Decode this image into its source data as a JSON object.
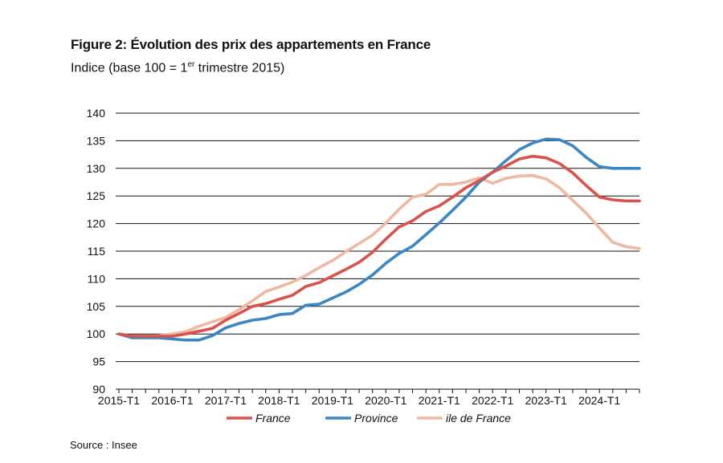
{
  "header": {
    "title": "Figure 2: Évolution des prix des appartements en France",
    "subtitle_main": "Indice (base 100 = 1",
    "subtitle_sup": "er",
    "subtitle_end": " trimestre 2015)"
  },
  "footer": {
    "source": "Source : Insee"
  },
  "chart_data": {
    "type": "line",
    "ylim": [
      90,
      140
    ],
    "yticks": [
      90,
      95,
      100,
      105,
      110,
      115,
      120,
      125,
      130,
      135,
      140
    ],
    "xtick_labels": [
      "2015-T1",
      "2016-T1",
      "2017-T1",
      "2018-T1",
      "2019-T1",
      "2020-T1",
      "2021-T1",
      "2022-T1",
      "2023-T1",
      "2024-T1"
    ],
    "grid": "horizontal",
    "legend_position": "bottom",
    "x": [
      "2015-T1",
      "2015-T2",
      "2015-T3",
      "2015-T4",
      "2016-T1",
      "2016-T2",
      "2016-T3",
      "2016-T4",
      "2017-T1",
      "2017-T2",
      "2017-T3",
      "2017-T4",
      "2018-T1",
      "2018-T2",
      "2018-T3",
      "2018-T4",
      "2019-T1",
      "2019-T2",
      "2019-T3",
      "2019-T4",
      "2020-T1",
      "2020-T2",
      "2020-T3",
      "2020-T4",
      "2021-T1",
      "2021-T2",
      "2021-T3",
      "2021-T4",
      "2022-T1",
      "2022-T2",
      "2022-T3",
      "2022-T4",
      "2023-T1",
      "2023-T2",
      "2023-T3",
      "2023-T4",
      "2024-T1",
      "2024-T2",
      "2024-T3",
      "2024-T4"
    ],
    "series": [
      {
        "name": "France",
        "color": "#d9534a",
        "values": [
          100.0,
          99.6,
          99.6,
          99.6,
          99.6,
          100.0,
          100.5,
          101.0,
          102.5,
          103.7,
          105.0,
          105.5,
          106.3,
          107.0,
          108.6,
          109.3,
          110.5,
          111.7,
          113.0,
          114.8,
          117.2,
          119.4,
          120.5,
          122.2,
          123.2,
          124.8,
          126.5,
          127.8,
          129.3,
          130.4,
          131.7,
          132.2,
          131.9,
          130.9,
          129.2,
          126.9,
          124.8,
          124.3,
          124.1,
          124.1
        ]
      },
      {
        "name": "Province",
        "color": "#3b86c4",
        "values": [
          100.0,
          99.3,
          99.3,
          99.3,
          99.1,
          98.9,
          98.9,
          99.7,
          101.1,
          101.9,
          102.5,
          102.8,
          103.5,
          103.7,
          105.2,
          105.4,
          106.5,
          107.6,
          109.0,
          110.7,
          112.8,
          114.6,
          115.9,
          118.0,
          120.1,
          122.4,
          124.8,
          127.5,
          129.3,
          131.4,
          133.4,
          134.6,
          135.3,
          135.2,
          134.1,
          132.0,
          130.3,
          130.0,
          130.0,
          130.0
        ]
      },
      {
        "name": "ile de France",
        "color": "#f0b7a1",
        "values": [
          100.0,
          99.6,
          99.6,
          99.7,
          100.0,
          100.4,
          101.4,
          102.2,
          103.0,
          104.4,
          106.0,
          107.7,
          108.5,
          109.4,
          110.6,
          112.0,
          113.3,
          114.9,
          116.4,
          117.9,
          120.1,
          122.6,
          124.8,
          125.3,
          127.1,
          127.1,
          127.5,
          128.3,
          127.3,
          128.2,
          128.6,
          128.7,
          128.1,
          126.5,
          124.2,
          121.9,
          119.2,
          116.6,
          115.8,
          115.5
        ]
      }
    ]
  }
}
